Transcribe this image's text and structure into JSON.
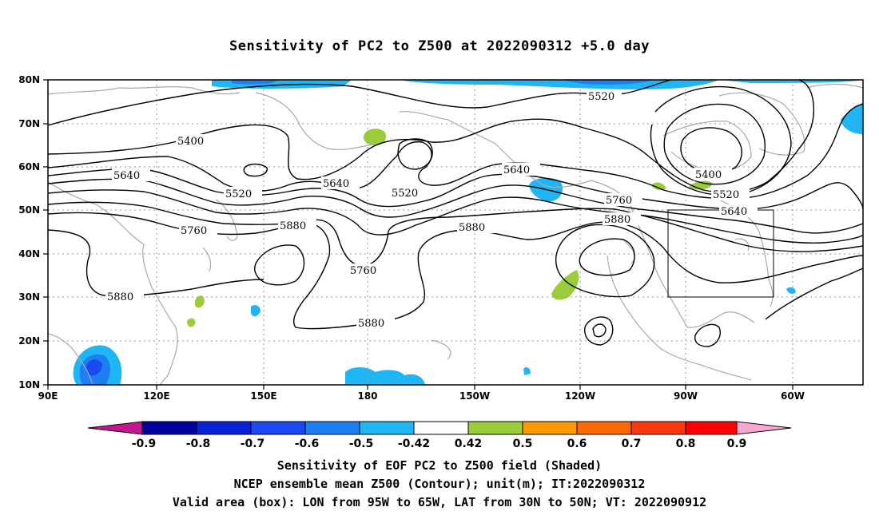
{
  "title": "Sensitivity of PC2 to Z500 at 2022090312 +5.0 day",
  "lat_labels": [
    "80N",
    "70N",
    "60N",
    "50N",
    "40N",
    "30N",
    "20N",
    "10N"
  ],
  "lon_labels": [
    "90E",
    "120E",
    "150E",
    "180",
    "150W",
    "120W",
    "90W",
    "60W"
  ],
  "contour_labels": [
    {
      "id": "c5520a",
      "text": "5520"
    },
    {
      "id": "c5400a",
      "text": "5400"
    },
    {
      "id": "c5640a",
      "text": "5640"
    },
    {
      "id": "c5520b",
      "text": "5520"
    },
    {
      "id": "c5640b",
      "text": "5640"
    },
    {
      "id": "c5520c",
      "text": "5520"
    },
    {
      "id": "c5640c",
      "text": "5640"
    },
    {
      "id": "c5760a",
      "text": "5760"
    },
    {
      "id": "c5880a",
      "text": "5880"
    },
    {
      "id": "c5880b",
      "text": "5880"
    },
    {
      "id": "c5760b",
      "text": "5760"
    },
    {
      "id": "c5880c",
      "text": "5880"
    },
    {
      "id": "c5880d",
      "text": "5880"
    },
    {
      "id": "c5760c",
      "text": "5760"
    },
    {
      "id": "c5880e",
      "text": "5880"
    },
    {
      "id": "c5400b",
      "text": "5400"
    },
    {
      "id": "c5520d",
      "text": "5520"
    },
    {
      "id": "c5640d",
      "text": "5640"
    }
  ],
  "colorbar": {
    "labels": [
      "-0.9",
      "-0.8",
      "-0.7",
      "-0.6",
      "-0.5",
      "-0.42",
      "0.42",
      "0.5",
      "0.6",
      "0.7",
      "0.8",
      "0.9"
    ],
    "colors": [
      "#00009e",
      "#0a22d8",
      "#1b4af2",
      "#1e7ff2",
      "#1fb6f5",
      "#ffffff",
      "#9bcd3a",
      "#ff9b00",
      "#ff6a00",
      "#ff3a10",
      "#ff0000"
    ],
    "left_end_color": "#c4168f",
    "right_end_color": "#f7a8d0"
  },
  "caption_lines": [
    "Sensitivity of EOF PC2 to Z500 field (Shaded)",
    "NCEP ensemble mean Z500 (Contour); unit(m); IT:2022090312",
    "Valid area (box): LON from 95W to 65W, LAT from 30N to 50N; VT: 2022090912"
  ]
}
